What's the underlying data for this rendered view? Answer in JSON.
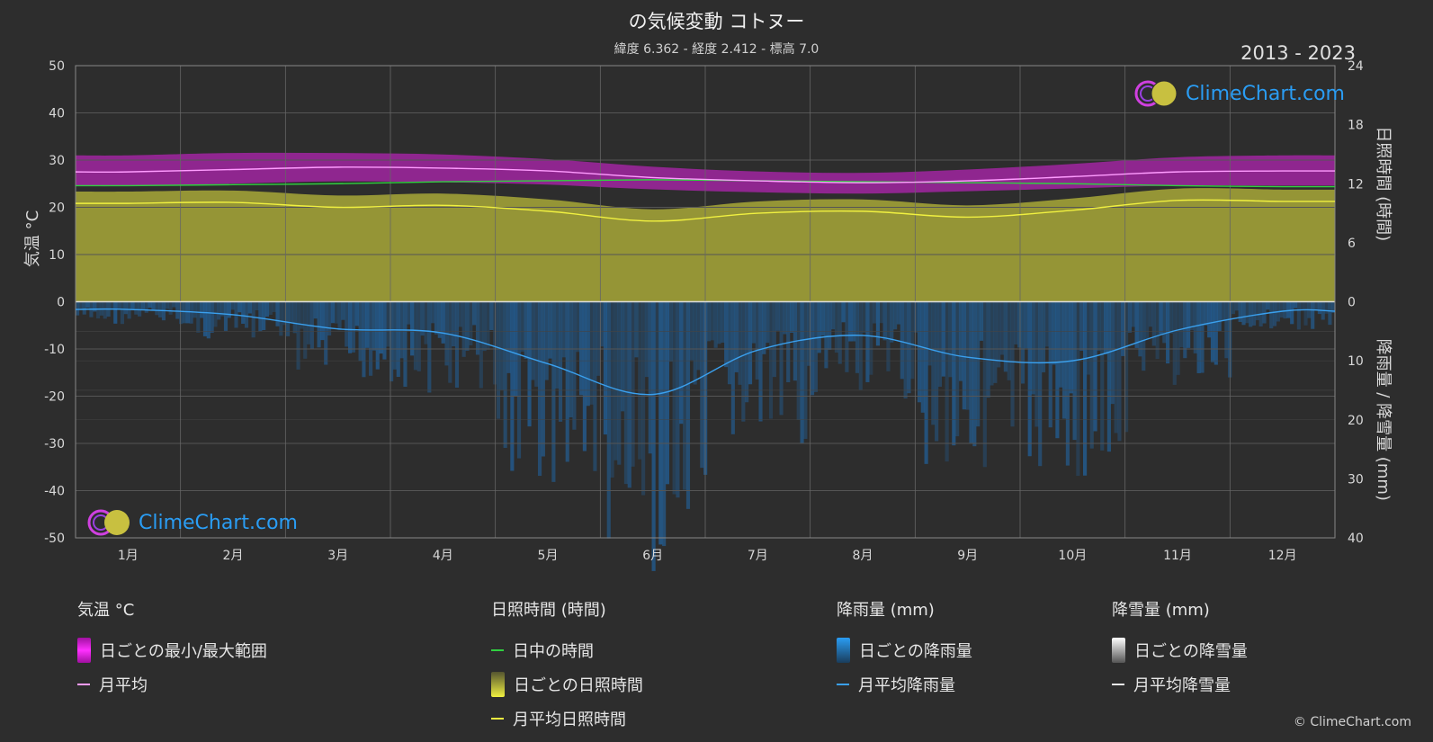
{
  "header": {
    "title": "の気候変動 コトヌー",
    "subtitle": "緯度 6.362 - 経度 2.412 - 標高 7.0",
    "years": "2013 - 2023"
  },
  "logo_text": "ClimeChart.com",
  "copyright": "© ClimeChart.com",
  "colors": {
    "background": "#2d2d2d",
    "temp_range": "#e020e0",
    "temp_avg": "#ff9cff",
    "daylight": "#30d040",
    "sunshine_fill": "#b8b83a",
    "sunshine_avg": "#f0f040",
    "rain_fill": "#1f6fb8",
    "rain_avg": "#3aa0ee",
    "snow_avg": "#e8e8e8",
    "logo": "#2a9df4"
  },
  "legend": {
    "temperature": {
      "header": "気温 °C",
      "range": "日ごとの最小/最大範囲",
      "avg": "月平均"
    },
    "sunshine": {
      "header": "日照時間 (時間)",
      "daylight": "日中の時間",
      "daily": "日ごとの日照時間",
      "avg": "月平均日照時間"
    },
    "rain": {
      "header": "降雨量 (mm)",
      "daily": "日ごとの降雨量",
      "avg": "月平均降雨量"
    },
    "snow": {
      "header": "降雪量 (mm)",
      "daily": "日ごとの降雪量",
      "avg": "月平均降雪量"
    }
  },
  "chart_data": {
    "type": "line",
    "months": [
      "1月",
      "2月",
      "3月",
      "4月",
      "5月",
      "6月",
      "7月",
      "8月",
      "9月",
      "10月",
      "11月",
      "12月"
    ],
    "left_axis": {
      "label": "気温 °C",
      "ylim": [
        -50,
        50
      ],
      "ticks": [
        50,
        40,
        30,
        20,
        10,
        0,
        -10,
        -20,
        -30,
        -40,
        -50
      ]
    },
    "right_axis_top": {
      "label": "日照時間 (時間)",
      "ylim": [
        0,
        24
      ],
      "ticks": [
        24,
        18,
        12,
        6,
        0
      ]
    },
    "right_axis_bottom": {
      "label": "降雨量 / 降雪量 (mm)",
      "ylim": [
        0,
        40
      ],
      "ticks": [
        0,
        10,
        20,
        30,
        40
      ]
    },
    "series": [
      {
        "name": "月平均",
        "axis": "temperature",
        "values": [
          27.5,
          28.0,
          28.5,
          28.3,
          27.7,
          26.3,
          25.6,
          25.2,
          25.6,
          26.5,
          27.5,
          27.7
        ]
      },
      {
        "name": "日ごとの最小/最大範囲",
        "axis": "temperature",
        "min": [
          24.5,
          25.0,
          25.5,
          25.3,
          24.8,
          23.8,
          23.2,
          22.9,
          23.4,
          24.0,
          24.6,
          24.6
        ],
        "max": [
          31.0,
          31.5,
          31.5,
          31.2,
          30.2,
          28.6,
          27.6,
          27.3,
          28.0,
          29.2,
          30.6,
          31.0
        ]
      },
      {
        "name": "日中の時間",
        "axis": "sunshine",
        "values": [
          11.8,
          11.9,
          12.0,
          12.2,
          12.3,
          12.4,
          12.3,
          12.2,
          12.1,
          12.0,
          11.8,
          11.7
        ]
      },
      {
        "name": "月平均日照時間",
        "axis": "sunshine",
        "values": [
          10.0,
          10.1,
          9.6,
          9.8,
          9.2,
          8.2,
          9.0,
          9.2,
          8.6,
          9.3,
          10.3,
          10.2
        ]
      },
      {
        "name": "月平均降雨量",
        "axis": "rain",
        "values": [
          1.3,
          2.2,
          4.6,
          5.3,
          10.5,
          15.7,
          8.2,
          5.7,
          9.4,
          10.0,
          4.8,
          1.6
        ]
      },
      {
        "name": "月平均降雪量",
        "axis": "snow",
        "values": [
          0,
          0,
          0,
          0,
          0,
          0,
          0,
          0,
          0,
          0,
          0,
          0
        ]
      }
    ],
    "grid": true
  }
}
